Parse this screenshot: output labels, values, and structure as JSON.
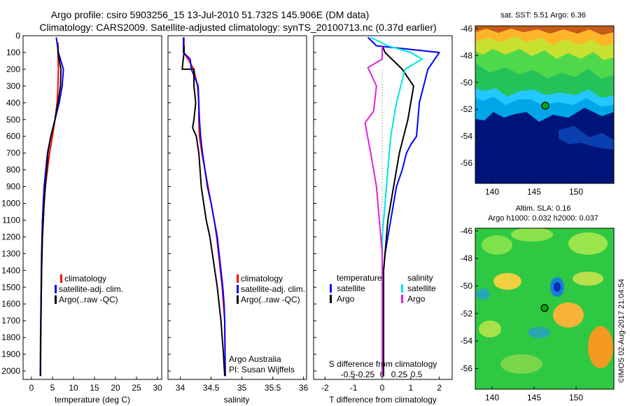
{
  "header": {
    "line1": "Argo profile: csiro 5903256_15 13-Jul-2010 51.732S 145.906E (DM data)",
    "line2": "Climatology: CARS2009. Satellite-adjusted climatology: synTS_20100713.nc (0.37d earlier)"
  },
  "footer_stamp": "©IMOS 02-Aug-2017 21:04:54",
  "colors": {
    "climatology": "#ff0000",
    "satellite": "#0000ff",
    "argo": "#000000",
    "s_satellite": "#00e5e5",
    "s_argo": "#e020e0",
    "marker": "#00aa00"
  },
  "panels": {
    "temperature": {
      "xlabel": "temperature (deg C)",
      "legend": [
        "climatology",
        "satellite-adj. clim.",
        "Argo(..raw -QC)"
      ]
    },
    "salinity": {
      "xlabel": "salinity",
      "legend": [
        "climatology",
        "satellite-adj. clim.",
        "Argo(..raw -QC)"
      ],
      "note1": "Argo Australia",
      "note2": "PI: Susan Wijffels"
    },
    "difference": {
      "xlabel": "T difference from climatology",
      "top_xlabel": "S difference from climatology",
      "legend_t_title": "temperature",
      "legend_s_title": "salinity",
      "legend_t": [
        "satellite",
        "Argo"
      ],
      "legend_s": [
        "satellite",
        "Argo"
      ]
    },
    "sst_map": {
      "title": "sat. SST: 5.51  Argo: 6.36",
      "yticks": [
        "-46",
        "-48",
        "-50",
        "-52",
        "-54",
        "-56"
      ],
      "xticks": [
        "140",
        "145",
        "150"
      ]
    },
    "sla_map": {
      "title1": "Altim. SLA: 0.16",
      "title2": "Argo h1000: 0.032 h2000: 0.037",
      "yticks": [
        "-46",
        "-48",
        "-50",
        "-52",
        "-54",
        "-56"
      ],
      "xticks": [
        "140",
        "145",
        "150"
      ]
    }
  },
  "chart_data": [
    {
      "type": "line",
      "title": "",
      "xlabel": "temperature (deg C)",
      "ylabel": "",
      "xlim": [
        -2,
        31
      ],
      "ylim": [
        2050,
        0
      ],
      "xticks": [
        0,
        5,
        10,
        15,
        20,
        25,
        30
      ],
      "yticks": [
        0,
        100,
        200,
        300,
        400,
        500,
        600,
        700,
        800,
        900,
        1000,
        1100,
        1200,
        1300,
        1400,
        1500,
        1600,
        1700,
        1800,
        1900,
        2000
      ],
      "series": [
        {
          "name": "climatology",
          "x": [
            6.3,
            6.3,
            6.4,
            6.3,
            6.1,
            5.6,
            5.0,
            4.3,
            3.8,
            3.3,
            3.0,
            2.8,
            2.6,
            2.5,
            2.4,
            2.35,
            2.3,
            2.25,
            2.2,
            2.15,
            2.1
          ],
          "y": [
            40,
            100,
            200,
            300,
            400,
            500,
            600,
            700,
            800,
            900,
            1000,
            1100,
            1200,
            1300,
            1400,
            1500,
            1600,
            1700,
            1800,
            1900,
            2030
          ]
        },
        {
          "name": "satellite-adj. clim.",
          "x": [
            5.9,
            6.4,
            7.6,
            7.3,
            6.6,
            5.6,
            4.6,
            3.8,
            3.4,
            3.0,
            2.8,
            2.6,
            2.5,
            2.4,
            2.35,
            2.3,
            2.25,
            2.2,
            2.15,
            2.1
          ],
          "y": [
            10,
            100,
            200,
            300,
            400,
            500,
            600,
            700,
            800,
            900,
            1000,
            1100,
            1200,
            1300,
            1400,
            1500,
            1600,
            1700,
            1800,
            2030
          ]
        },
        {
          "name": "Argo(..raw -QC)",
          "x": [
            6.3,
            6.3,
            7.0,
            6.9,
            6.3,
            5.6,
            4.6,
            3.9,
            3.6,
            3.3,
            3.0,
            2.8,
            2.6,
            2.5,
            2.4,
            2.35,
            2.3,
            2.25,
            2.2,
            2.15
          ],
          "y": [
            60,
            100,
            200,
            300,
            400,
            500,
            600,
            700,
            800,
            900,
            1000,
            1100,
            1200,
            1300,
            1400,
            1500,
            1600,
            1700,
            1800,
            2030
          ]
        }
      ]
    },
    {
      "type": "line",
      "title": "",
      "xlabel": "salinity",
      "ylabel": "",
      "xlim": [
        33.8,
        36.05
      ],
      "ylim": [
        2050,
        0
      ],
      "xticks": [
        34,
        34.5,
        35,
        35.5,
        36
      ],
      "series": [
        {
          "name": "climatology",
          "x": [
            34.06,
            34.06,
            34.22,
            34.28,
            34.3,
            34.3,
            34.31,
            34.35,
            34.4,
            34.45,
            34.5,
            34.55,
            34.59,
            34.62,
            34.65,
            34.68,
            34.7,
            34.72,
            34.73
          ],
          "y": [
            10,
            100,
            200,
            300,
            400,
            500,
            600,
            700,
            800,
            900,
            1000,
            1100,
            1200,
            1300,
            1400,
            1500,
            1600,
            1700,
            2030
          ]
        },
        {
          "name": "satellite-adj. clim.",
          "x": [
            34.05,
            34.05,
            34.16,
            34.18,
            34.29,
            34.3,
            34.31,
            34.33,
            34.36,
            34.4,
            34.44,
            34.5,
            34.55,
            34.6,
            34.63,
            34.66,
            34.69,
            34.71,
            34.72,
            34.73
          ],
          "y": [
            10,
            100,
            140,
            200,
            300,
            400,
            500,
            600,
            700,
            800,
            900,
            1000,
            1100,
            1200,
            1300,
            1400,
            1500,
            1600,
            1700,
            2030
          ]
        },
        {
          "name": "Argo(..raw -QC)",
          "x": [
            34.06,
            34.06,
            34.03,
            34.22,
            34.22,
            34.25,
            34.22,
            34.2,
            34.26,
            34.3,
            34.32,
            34.34,
            34.38,
            34.42,
            34.48,
            34.52,
            34.56,
            34.6,
            34.63,
            34.66,
            34.68,
            34.7,
            34.72
          ],
          "y": [
            60,
            100,
            200,
            200,
            300,
            400,
            500,
            550,
            600,
            700,
            800,
            900,
            1000,
            1100,
            1200,
            1300,
            1400,
            1500,
            1600,
            1700,
            1800,
            1900,
            2030
          ]
        }
      ]
    },
    {
      "type": "line",
      "title": "",
      "xlabel": "T difference from climatology",
      "top_label": "S difference from climatology",
      "xlim": [
        -2.4,
        2.45
      ],
      "ylim": [
        2050,
        0
      ],
      "xticks": [
        -2,
        -1,
        0,
        1,
        2
      ],
      "top_ticks": [
        "-0.5",
        "-0.25",
        "0",
        "0.25",
        "0.5"
      ],
      "series": [
        {
          "name": "temperature satellite",
          "x": [
            -0.5,
            -0.2,
            2.0,
            1.6,
            1.3,
            1.2,
            1.0,
            0.85,
            0.7,
            0.5,
            0.4,
            0.3,
            0.2,
            0.1,
            0.05,
            0.05,
            0.05
          ],
          "y": [
            10,
            60,
            100,
            200,
            400,
            600,
            650,
            700,
            800,
            900,
            1000,
            1100,
            1200,
            1300,
            1400,
            1600,
            2030
          ]
        },
        {
          "name": "temperature Argo",
          "x": [
            0.0,
            0.1,
            0.7,
            1.1,
            0.9,
            0.6,
            0.4,
            0.3,
            0.2,
            0.15,
            0.05,
            0.05,
            0.05
          ],
          "y": [
            60,
            100,
            200,
            300,
            500,
            700,
            900,
            1000,
            1100,
            1200,
            1400,
            1600,
            2030
          ]
        },
        {
          "name": "salinity satellite",
          "x": [
            -0.4,
            0.2,
            1.0,
            1.4,
            0.8,
            0.5,
            0.3,
            0.2,
            0.1,
            0.0,
            0.0,
            0.0
          ],
          "y": [
            10,
            60,
            100,
            140,
            200,
            400,
            600,
            800,
            1000,
            1200,
            1600,
            2030
          ]
        },
        {
          "name": "salinity Argo",
          "x": [
            0.0,
            0.0,
            -0.5,
            -0.2,
            -0.3,
            -0.6,
            -0.4,
            -0.2,
            -0.1,
            0.0,
            0.0
          ],
          "y": [
            60,
            140,
            190,
            300,
            450,
            520,
            700,
            900,
            1100,
            1300,
            2030
          ]
        }
      ]
    },
    {
      "type": "heatmap",
      "title": "sat. SST: 5.51  Argo: 6.36",
      "xlim": [
        138,
        154.5
      ],
      "ylim": [
        -57.5,
        -45.8
      ],
      "xticks": [
        140,
        145,
        150
      ],
      "yticks": [
        -46,
        -48,
        -50,
        -52,
        -54,
        -56
      ],
      "marker": {
        "lon": 145.9,
        "lat": -51.73
      }
    },
    {
      "type": "heatmap",
      "title": "Altim. SLA: 0.16",
      "subtitle": "Argo h1000: 0.032 h2000: 0.037",
      "xlim": [
        138,
        154.5
      ],
      "ylim": [
        -57.5,
        -45.8
      ],
      "xticks": [
        140,
        145,
        150
      ],
      "yticks": [
        -46,
        -48,
        -50,
        -52,
        -54,
        -56
      ],
      "marker": {
        "lon": 145.9,
        "lat": -51.73
      }
    }
  ]
}
